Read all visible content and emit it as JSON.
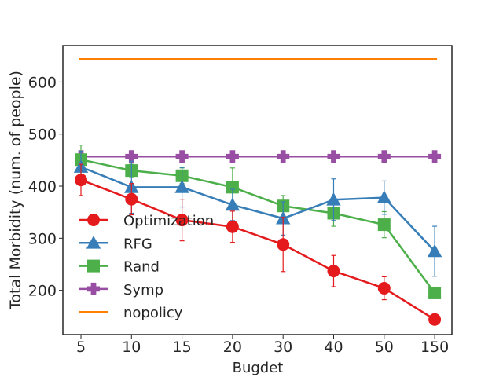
{
  "chart_data": {
    "type": "line",
    "title": "",
    "xlabel": "Bugdet",
    "ylabel": "Total Morbidity (num. of people)",
    "categories": [
      "5",
      "10",
      "15",
      "20",
      "30",
      "40",
      "50",
      "150"
    ],
    "ylim": [
      115,
      670
    ],
    "yticks": [
      200,
      300,
      400,
      500,
      600
    ],
    "grid": false,
    "legend_position": "lower-left",
    "series": [
      {
        "name": "Optimization",
        "color": "#e41a1c",
        "marker": "circle",
        "values": [
          412,
          375,
          335,
          322,
          288,
          237,
          204,
          144
        ],
        "errors": [
          30,
          30,
          40,
          30,
          52,
          30,
          22,
          0
        ]
      },
      {
        "name": "RFG",
        "color": "#377eb8",
        "marker": "triangle",
        "values": [
          437,
          398,
          398,
          364,
          338,
          374,
          378,
          275
        ],
        "errors": [
          30,
          50,
          38,
          30,
          32,
          40,
          32,
          48
        ]
      },
      {
        "name": "Rand",
        "color": "#4daf4a",
        "marker": "square",
        "values": [
          451,
          430,
          420,
          398,
          362,
          348,
          326,
          195
        ],
        "errors": [
          28,
          12,
          15,
          37,
          20,
          25,
          25,
          0
        ]
      },
      {
        "name": "Symp",
        "color": "#984ea3",
        "marker": "plus",
        "values": [
          457,
          457,
          457,
          457,
          457,
          457,
          457,
          457
        ],
        "errors": [
          0,
          0,
          0,
          0,
          0,
          0,
          0,
          0
        ]
      },
      {
        "name": "nopolicy",
        "color": "#ff7f00",
        "marker": "none",
        "values": [
          644,
          644,
          644,
          644,
          644,
          644,
          644,
          644
        ],
        "errors": [
          0,
          0,
          0,
          0,
          0,
          0,
          0,
          0
        ]
      }
    ]
  }
}
